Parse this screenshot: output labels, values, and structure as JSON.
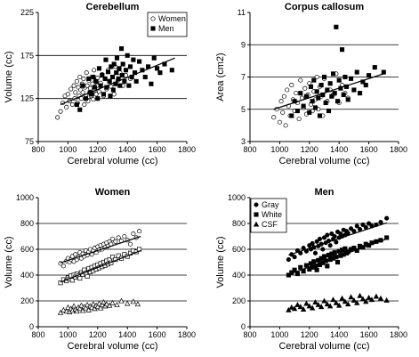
{
  "chart_data": [
    {
      "type": "scatter",
      "title": "Cerebellum",
      "xlabel": "Cerebral volume (cc)",
      "ylabel": "Volume (cc)",
      "xlim": [
        800,
        1800
      ],
      "ylim": [
        75,
        225
      ],
      "xticks": [
        800,
        1000,
        1200,
        1400,
        1600,
        1800
      ],
      "yticks": [
        75,
        125,
        175,
        225
      ],
      "grid_y": [
        125,
        175
      ],
      "legend": "top-right",
      "series": [
        {
          "name": "Women",
          "marker": "circle-open",
          "x": [
            930,
            950,
            965,
            980,
            990,
            1000,
            1010,
            1020,
            1030,
            1040,
            1045,
            1050,
            1060,
            1065,
            1070,
            1075,
            1080,
            1085,
            1090,
            1095,
            1100,
            1105,
            1110,
            1115,
            1120,
            1125,
            1130,
            1135,
            1140,
            1145,
            1150,
            1155,
            1160,
            1165,
            1170,
            1175,
            1180,
            1185,
            1190,
            1195,
            1200,
            1210,
            1220,
            1230,
            1240,
            1250,
            1260,
            1270,
            1280,
            1290,
            1300,
            1310,
            1320,
            1335,
            1350,
            1370,
            1390,
            1420
          ],
          "y": [
            103,
            110,
            120,
            128,
            115,
            130,
            122,
            136,
            118,
            140,
            125,
            132,
            145,
            120,
            138,
            128,
            150,
            135,
            125,
            142,
            132,
            148,
            118,
            138,
            128,
            155,
            140,
            122,
            146,
            132,
            137,
            128,
            150,
            142,
            124,
            158,
            135,
            146,
            130,
            140,
            149,
            133,
            143,
            153,
            128,
            148,
            136,
            158,
            145,
            139,
            150,
            130,
            162,
            146,
            155,
            140,
            152,
            148
          ]
        },
        {
          "name": "Men",
          "marker": "square-filled",
          "x": [
            1060,
            1080,
            1100,
            1120,
            1140,
            1150,
            1160,
            1170,
            1180,
            1190,
            1200,
            1210,
            1220,
            1230,
            1240,
            1250,
            1255,
            1260,
            1270,
            1280,
            1285,
            1290,
            1300,
            1305,
            1310,
            1320,
            1325,
            1330,
            1340,
            1345,
            1350,
            1360,
            1365,
            1370,
            1380,
            1390,
            1400,
            1410,
            1420,
            1430,
            1440,
            1450,
            1460,
            1480,
            1500,
            1520,
            1540,
            1560,
            1580,
            1600,
            1620,
            1650,
            1700
          ],
          "y": [
            118,
            112,
            140,
            125,
            148,
            132,
            130,
            150,
            138,
            145,
            125,
            160,
            140,
            152,
            130,
            148,
            170,
            138,
            156,
            145,
            128,
            162,
            150,
            135,
            165,
            142,
            155,
            172,
            148,
            160,
            140,
            183,
            152,
            165,
            145,
            158,
            175,
            140,
            162,
            150,
            170,
            155,
            145,
            168,
            158,
            150,
            162,
            142,
            172,
            160,
            155,
            165,
            158
          ]
        }
      ],
      "trendlines": [
        {
          "from": [
            950,
            118
          ],
          "to": [
            1720,
            172
          ]
        }
      ]
    },
    {
      "type": "scatter",
      "title": "Corpus callosum",
      "xlabel": "Cerebral volume (cc)",
      "ylabel": "Area (cm2)",
      "xlim": [
        800,
        1800
      ],
      "ylim": [
        3,
        11
      ],
      "xticks": [
        800,
        1000,
        1200,
        1400,
        1600,
        1800
      ],
      "yticks": [
        3,
        5,
        7,
        9,
        11
      ],
      "grid_y": [
        5,
        7,
        9
      ],
      "series": [
        {
          "name": "Women",
          "marker": "circle-open",
          "x": [
            960,
            980,
            1000,
            1010,
            1020,
            1030,
            1040,
            1050,
            1060,
            1070,
            1080,
            1090,
            1100,
            1110,
            1120,
            1130,
            1140,
            1150,
            1160,
            1170,
            1180,
            1190,
            1200,
            1210,
            1220,
            1230,
            1240,
            1250,
            1260,
            1270,
            1280,
            1290,
            1300,
            1320,
            1340,
            1360,
            1380,
            1400,
            1420,
            1440,
            1460
          ],
          "y": [
            4.5,
            5.0,
            4.2,
            5.5,
            4.8,
            5.8,
            4.0,
            6.2,
            5.2,
            4.6,
            6.5,
            5.6,
            4.9,
            6.0,
            5.4,
            4.4,
            6.8,
            5.7,
            5.1,
            6.3,
            4.7,
            5.9,
            6.6,
            5.3,
            4.9,
            6.1,
            5.6,
            7.0,
            5.0,
            6.4,
            5.8,
            4.6,
            6.9,
            5.5,
            6.2,
            5.9,
            7.2,
            5.4,
            6.5,
            6.0,
            5.7
          ]
        },
        {
          "name": "Men",
          "marker": "square-filled",
          "x": [
            1080,
            1100,
            1120,
            1140,
            1160,
            1180,
            1200,
            1210,
            1220,
            1230,
            1240,
            1250,
            1260,
            1270,
            1280,
            1290,
            1300,
            1310,
            1320,
            1330,
            1340,
            1350,
            1360,
            1370,
            1380,
            1390,
            1400,
            1410,
            1420,
            1430,
            1440,
            1450,
            1460,
            1480,
            1500,
            1520,
            1540,
            1560,
            1580,
            1600,
            1640,
            1700
          ],
          "y": [
            4.6,
            5.5,
            4.9,
            6.0,
            5.2,
            5.8,
            4.8,
            6.4,
            5.5,
            6.8,
            5.1,
            6.1,
            5.7,
            4.6,
            6.5,
            5.9,
            7.0,
            5.4,
            6.2,
            4.9,
            6.6,
            5.8,
            7.2,
            6.0,
            10.1,
            5.5,
            6.8,
            6.3,
            8.7,
            5.9,
            7.0,
            6.4,
            5.6,
            6.9,
            6.2,
            7.3,
            6.0,
            6.7,
            6.5,
            7.1,
            7.6,
            7.3
          ]
        }
      ],
      "trendlines": [
        {
          "from": [
            960,
            5.0
          ],
          "to": [
            1700,
            7.2
          ]
        }
      ]
    },
    {
      "type": "scatter",
      "title": "Women",
      "xlabel": "Cerebral volume (cc)",
      "ylabel": "Volume (cc)",
      "xlim": [
        800,
        1800
      ],
      "ylim": [
        0,
        1000
      ],
      "xticks": [
        800,
        1000,
        1200,
        1400,
        1600,
        1800
      ],
      "yticks": [
        0,
        200,
        400,
        600,
        800,
        1000
      ],
      "grid_y": [
        200,
        400,
        600,
        800
      ],
      "series": [
        {
          "name": "Gray",
          "marker": "circle-open",
          "x": [
            950,
            970,
            990,
            1000,
            1010,
            1020,
            1030,
            1040,
            1050,
            1060,
            1070,
            1080,
            1090,
            1100,
            1110,
            1120,
            1130,
            1140,
            1150,
            1160,
            1170,
            1180,
            1190,
            1200,
            1210,
            1220,
            1230,
            1240,
            1250,
            1260,
            1270,
            1280,
            1290,
            1300,
            1320,
            1340,
            1360,
            1380,
            1400,
            1420,
            1440,
            1460,
            1480
          ],
          "y": [
            490,
            470,
            510,
            530,
            500,
            520,
            545,
            505,
            560,
            520,
            540,
            575,
            530,
            565,
            545,
            590,
            555,
            580,
            600,
            560,
            590,
            610,
            575,
            620,
            595,
            630,
            600,
            640,
            615,
            650,
            625,
            660,
            640,
            680,
            660,
            690,
            665,
            700,
            670,
            640,
            720,
            690,
            740
          ]
        },
        {
          "name": "White",
          "marker": "square-open",
          "x": [
            950,
            970,
            990,
            1000,
            1010,
            1020,
            1030,
            1040,
            1050,
            1060,
            1070,
            1080,
            1090,
            1100,
            1110,
            1120,
            1130,
            1140,
            1150,
            1160,
            1170,
            1180,
            1190,
            1200,
            1210,
            1220,
            1230,
            1240,
            1250,
            1260,
            1270,
            1280,
            1290,
            1300,
            1320,
            1340,
            1360,
            1380,
            1400,
            1420,
            1440,
            1460,
            1480
          ],
          "y": [
            340,
            365,
            355,
            380,
            370,
            395,
            360,
            400,
            385,
            410,
            395,
            375,
            420,
            405,
            440,
            415,
            390,
            450,
            425,
            460,
            435,
            470,
            445,
            480,
            455,
            490,
            465,
            500,
            475,
            510,
            485,
            520,
            495,
            540,
            520,
            550,
            530,
            560,
            545,
            570,
            590,
            580,
            600
          ]
        },
        {
          "name": "CSF",
          "marker": "triangle-open",
          "x": [
            950,
            970,
            990,
            1000,
            1010,
            1020,
            1030,
            1040,
            1050,
            1060,
            1070,
            1080,
            1090,
            1100,
            1110,
            1120,
            1130,
            1140,
            1150,
            1160,
            1170,
            1180,
            1190,
            1200,
            1210,
            1220,
            1230,
            1240,
            1250,
            1260,
            1280,
            1300,
            1330,
            1360,
            1400,
            1440,
            1470
          ],
          "y": [
            110,
            130,
            120,
            150,
            115,
            140,
            125,
            160,
            135,
            120,
            150,
            140,
            165,
            125,
            155,
            145,
            170,
            130,
            160,
            150,
            175,
            140,
            165,
            155,
            180,
            145,
            170,
            190,
            160,
            175,
            165,
            185,
            170,
            200,
            180,
            195,
            175
          ]
        }
      ],
      "trendlines": [
        {
          "from": [
            950,
            495
          ],
          "to": [
            1490,
            700
          ]
        },
        {
          "from": [
            950,
            345
          ],
          "to": [
            1490,
            590
          ]
        }
      ]
    },
    {
      "type": "scatter",
      "title": "Men",
      "xlabel": "Cerebral volume (cc)",
      "ylabel": "Volume (cc)",
      "xlim": [
        800,
        1800
      ],
      "ylim": [
        0,
        1000
      ],
      "xticks": [
        800,
        1000,
        1200,
        1400,
        1600,
        1800
      ],
      "yticks": [
        0,
        200,
        400,
        600,
        800,
        1000
      ],
      "grid_y": [
        200,
        400,
        600,
        800
      ],
      "legend": "top-left",
      "series": [
        {
          "name": "Gray",
          "marker": "circle-filled",
          "x": [
            1060,
            1080,
            1100,
            1120,
            1140,
            1160,
            1180,
            1200,
            1210,
            1220,
            1230,
            1240,
            1250,
            1260,
            1270,
            1280,
            1290,
            1300,
            1310,
            1320,
            1330,
            1340,
            1350,
            1360,
            1370,
            1380,
            1390,
            1400,
            1410,
            1420,
            1430,
            1440,
            1450,
            1460,
            1480,
            1500,
            1520,
            1540,
            1560,
            1580,
            1600,
            1620,
            1650,
            1680,
            1720
          ],
          "y": [
            520,
            560,
            540,
            590,
            570,
            610,
            585,
            630,
            600,
            645,
            615,
            570,
            660,
            625,
            680,
            640,
            600,
            690,
            650,
            710,
            665,
            630,
            720,
            680,
            700,
            655,
            735,
            690,
            720,
            700,
            750,
            710,
            740,
            725,
            760,
            740,
            780,
            755,
            790,
            770,
            800,
            780,
            790,
            810,
            840
          ]
        },
        {
          "name": "White",
          "marker": "square-filled",
          "x": [
            1060,
            1080,
            1100,
            1120,
            1140,
            1160,
            1180,
            1200,
            1210,
            1220,
            1230,
            1240,
            1250,
            1260,
            1270,
            1280,
            1290,
            1300,
            1310,
            1320,
            1330,
            1340,
            1350,
            1360,
            1370,
            1380,
            1390,
            1400,
            1410,
            1420,
            1430,
            1440,
            1450,
            1460,
            1480,
            1500,
            1520,
            1540,
            1560,
            1580,
            1600,
            1620,
            1650,
            1680,
            1720
          ],
          "y": [
            400,
            420,
            440,
            410,
            460,
            430,
            475,
            445,
            490,
            460,
            505,
            470,
            440,
            515,
            480,
            530,
            495,
            545,
            510,
            470,
            555,
            520,
            565,
            530,
            575,
            540,
            500,
            585,
            550,
            595,
            560,
            605,
            570,
            580,
            600,
            610,
            590,
            625,
            615,
            640,
            630,
            650,
            660,
            670,
            690
          ]
        },
        {
          "name": "CSF",
          "marker": "triangle-filled",
          "x": [
            1060,
            1080,
            1100,
            1120,
            1140,
            1160,
            1180,
            1200,
            1220,
            1240,
            1260,
            1280,
            1300,
            1320,
            1340,
            1360,
            1380,
            1400,
            1420,
            1440,
            1460,
            1480,
            1500,
            1520,
            1540,
            1560,
            1580,
            1600,
            1620,
            1650,
            1680,
            1720
          ],
          "y": [
            130,
            150,
            140,
            170,
            155,
            135,
            180,
            160,
            145,
            190,
            170,
            155,
            200,
            175,
            160,
            210,
            185,
            165,
            220,
            195,
            175,
            230,
            205,
            185,
            240,
            215,
            195,
            225,
            210,
            235,
            220,
            205
          ]
        }
      ],
      "trendlines": [
        {
          "from": [
            1060,
            555
          ],
          "to": [
            1720,
            805
          ]
        },
        {
          "from": [
            1060,
            405
          ],
          "to": [
            1720,
            680
          ]
        }
      ]
    }
  ]
}
